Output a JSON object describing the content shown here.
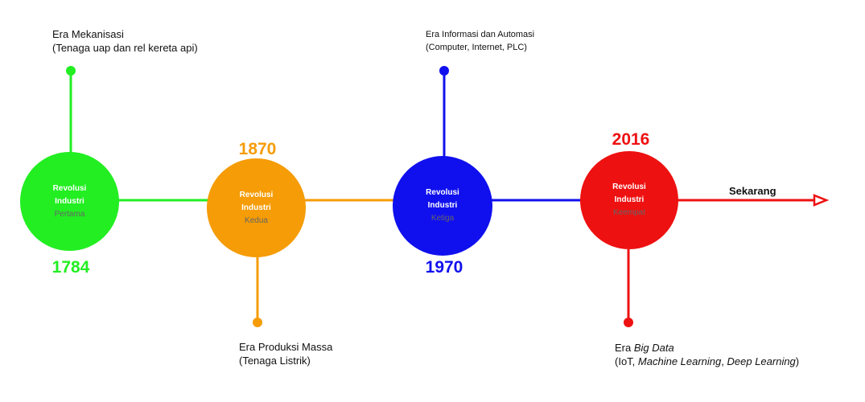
{
  "colors": {
    "era1": "#22ee22",
    "era2": "#f59c06",
    "era3": "#1010ee",
    "era4": "#ee1111",
    "sublabel": "#666666"
  },
  "eras": [
    {
      "line1": "Revolusi",
      "line2": "Industri",
      "line3": "Pertama",
      "year": "1784",
      "desc_line1": "Era Mekanisasi",
      "desc_line2": "(Tenaga uap dan rel kereta api)"
    },
    {
      "line1": "Revolusi",
      "line2": "Industri",
      "line3": "Kedua",
      "year": "1870",
      "desc_line1": "Era Produksi Massa",
      "desc_line2": "(Tenaga Listrik)"
    },
    {
      "line1": "Revolusi",
      "line2": "Industri",
      "line3": "Ketiga",
      "year": "1970",
      "desc_line1": "Era Informasi dan Automasi",
      "desc_line2": "(Computer, Internet, PLC)"
    },
    {
      "line1": "Revolusi",
      "line2": "Industri",
      "line3": "Keempat",
      "year": "2016",
      "desc_era": "Era ",
      "desc_bigdata": "Big Data",
      "desc_open": "(IoT, ",
      "desc_ml": "Machine Learning",
      "desc_comma": ", ",
      "desc_dl": "Deep Learning",
      "desc_close": ")"
    }
  ],
  "end_label": "Sekarang"
}
